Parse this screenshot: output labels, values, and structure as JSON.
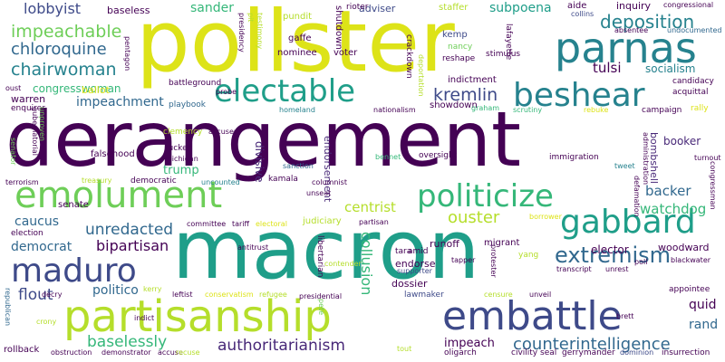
{
  "palette": {
    "purple": "#440154",
    "indigo": "#482878",
    "blue": "#3e4a89",
    "steel": "#31688e",
    "teal": "#26828e",
    "green": "#1f9e89",
    "sea": "#35b779",
    "lime": "#6ece58",
    "yellowgreen": "#b5de2b",
    "yellow": "#dde318"
  },
  "words": [
    {
      "text": "derangement",
      "color": "#440154"
    },
    {
      "text": "pollster",
      "color": "#dde318"
    },
    {
      "text": "macron",
      "color": "#1f9e89"
    },
    {
      "text": "partisanship",
      "color": "#b5de2b"
    },
    {
      "text": "embattle",
      "color": "#3e4a89"
    },
    {
      "text": "emolument",
      "color": "#6ece58"
    },
    {
      "text": "parnas",
      "color": "#26828e"
    },
    {
      "text": "electable",
      "color": "#1f9e89"
    },
    {
      "text": "politicize",
      "color": "#35b779"
    },
    {
      "text": "beshear",
      "color": "#26828e"
    },
    {
      "text": "gabbard",
      "color": "#1f9e89"
    },
    {
      "text": "maduro",
      "color": "#3e4a89"
    },
    {
      "text": "extremism",
      "color": "#31688e"
    },
    {
      "text": "deposition",
      "color": "#26828e"
    },
    {
      "text": "counterintelligence",
      "color": "#31688e"
    },
    {
      "text": "authoritarianism",
      "color": "#482878"
    },
    {
      "text": "impeachable",
      "color": "#6ece58"
    },
    {
      "text": "chloroquine",
      "color": "#31688e"
    },
    {
      "text": "chairwoman",
      "color": "#26828e"
    },
    {
      "text": "kremlin",
      "color": "#3e4a89"
    },
    {
      "text": "unredacted",
      "color": "#31688e"
    },
    {
      "text": "bipartisan",
      "color": "#440154"
    },
    {
      "text": "baselessly",
      "color": "#35b779"
    },
    {
      "text": "ouster",
      "color": "#b5de2b"
    },
    {
      "text": "watchdog",
      "color": "#35b779"
    },
    {
      "text": "backer",
      "color": "#31688e"
    },
    {
      "text": "centrist",
      "color": "#b5de2b"
    },
    {
      "text": "impeachment",
      "color": "#31688e"
    },
    {
      "text": "politico",
      "color": "#31688e"
    },
    {
      "text": "lobbyist",
      "color": "#3e4a89"
    },
    {
      "text": "sander",
      "color": "#35b779"
    },
    {
      "text": "subpoena",
      "color": "#1f9e89"
    },
    {
      "text": "tulsi",
      "color": "#440154"
    },
    {
      "text": "caucus",
      "color": "#31688e"
    },
    {
      "text": "democrat",
      "color": "#31688e"
    },
    {
      "text": "flout",
      "color": "#3e4a89"
    },
    {
      "text": "collusion",
      "color": "#35b779"
    },
    {
      "text": "trump",
      "color": "#35b779"
    },
    {
      "text": "impeach",
      "color": "#440154"
    },
    {
      "text": "congresswoman",
      "color": "#35b779"
    },
    {
      "text": "socialism",
      "color": "#26828e"
    },
    {
      "text": "runoff",
      "color": "#440154"
    },
    {
      "text": "woodward",
      "color": "#440154"
    },
    {
      "text": "elector",
      "color": "#440154"
    },
    {
      "text": "quid",
      "color": "#440154"
    },
    {
      "text": "rand",
      "color": "#31688e"
    },
    {
      "text": "booker",
      "color": "#482878"
    },
    {
      "text": "bombshell",
      "color": "#482878"
    },
    {
      "text": "divisive",
      "color": "#482878"
    },
    {
      "text": "endorsement",
      "color": "#482878"
    },
    {
      "text": "dossier",
      "color": "#440154"
    },
    {
      "text": "endorse",
      "color": "#440154"
    },
    {
      "text": "senate",
      "color": "#440154"
    },
    {
      "text": "gaffe",
      "color": "#440154"
    },
    {
      "text": "voter",
      "color": "#440154"
    },
    {
      "text": "nominee",
      "color": "#440154"
    },
    {
      "text": "pundit",
      "color": "#b5de2b"
    },
    {
      "text": "baseless",
      "color": "#440154"
    },
    {
      "text": "adviser",
      "color": "#3e4a89"
    },
    {
      "text": "staffer",
      "color": "#b5de2b"
    },
    {
      "text": "aide",
      "color": "#440154"
    },
    {
      "text": "inquiry",
      "color": "#440154"
    },
    {
      "text": "congressional",
      "color": "#440154"
    },
    {
      "text": "collins",
      "color": "#3e4a89"
    },
    {
      "text": "kemp",
      "color": "#3e4a89"
    },
    {
      "text": "nancy",
      "color": "#6ece58"
    },
    {
      "text": "reshape",
      "color": "#440154"
    },
    {
      "text": "stimulus",
      "color": "#440154"
    },
    {
      "text": "indictment",
      "color": "#440154"
    },
    {
      "text": "showdown",
      "color": "#440154"
    },
    {
      "text": "graham",
      "color": "#35b779"
    },
    {
      "text": "scrutiny",
      "color": "#35b779"
    },
    {
      "text": "rebuke",
      "color": "#dde318"
    },
    {
      "text": "campaign",
      "color": "#440154"
    },
    {
      "text": "rally",
      "color": "#dde318"
    },
    {
      "text": "acquittal",
      "color": "#440154"
    },
    {
      "text": "candidacy",
      "color": "#440154"
    },
    {
      "text": "turnout",
      "color": "#440154"
    },
    {
      "text": "tweet",
      "color": "#26828e"
    },
    {
      "text": "immigration",
      "color": "#440154"
    },
    {
      "text": "oversight",
      "color": "#440154"
    },
    {
      "text": "bennet",
      "color": "#35b779"
    },
    {
      "text": "nationalism",
      "color": "#440154"
    },
    {
      "text": "homeland",
      "color": "#26828e"
    },
    {
      "text": "sanction",
      "color": "#31688e"
    },
    {
      "text": "battleground",
      "color": "#440154"
    },
    {
      "text": "probe",
      "color": "#440154"
    },
    {
      "text": "playbook",
      "color": "#31688e"
    },
    {
      "text": "clemency",
      "color": "#b5de2b"
    },
    {
      "text": "accuser",
      "color": "#440154"
    },
    {
      "text": "tucker",
      "color": "#440154"
    },
    {
      "text": "michigan",
      "color": "#440154"
    },
    {
      "text": "falsehood",
      "color": "#440154"
    },
    {
      "text": "treasury",
      "color": "#b5de2b"
    },
    {
      "text": "democratic",
      "color": "#440154"
    },
    {
      "text": "kamala",
      "color": "#440154"
    },
    {
      "text": "uncounted",
      "color": "#26828e"
    },
    {
      "text": "columnist",
      "color": "#440154"
    },
    {
      "text": "unseat",
      "color": "#440154"
    },
    {
      "text": "judiciary",
      "color": "#b5de2b"
    },
    {
      "text": "partisan",
      "color": "#440154"
    },
    {
      "text": "migrant",
      "color": "#440154"
    },
    {
      "text": "committee",
      "color": "#440154"
    },
    {
      "text": "tariff",
      "color": "#440154"
    },
    {
      "text": "electoral",
      "color": "#dde318"
    },
    {
      "text": "election",
      "color": "#440154"
    },
    {
      "text": "terrorism",
      "color": "#440154"
    },
    {
      "text": "tara",
      "color": "#440154"
    },
    {
      "text": "amid",
      "color": "#440154"
    },
    {
      "text": "yang",
      "color": "#b5de2b"
    },
    {
      "text": "poll",
      "color": "#440154"
    },
    {
      "text": "blackwater",
      "color": "#440154"
    },
    {
      "text": "transcript",
      "color": "#440154"
    },
    {
      "text": "unrest",
      "color": "#440154"
    },
    {
      "text": "supporter",
      "color": "#3e4a89"
    },
    {
      "text": "tapper",
      "color": "#440154"
    },
    {
      "text": "contender",
      "color": "#b5de2b"
    },
    {
      "text": "antitrust",
      "color": "#440154"
    },
    {
      "text": "leftist",
      "color": "#440154"
    },
    {
      "text": "conservatism",
      "color": "#dde318"
    },
    {
      "text": "refugee",
      "color": "#b5de2b"
    },
    {
      "text": "presidential",
      "color": "#440154"
    },
    {
      "text": "lawmaker",
      "color": "#3e4a89"
    },
    {
      "text": "censure",
      "color": "#b5de2b"
    },
    {
      "text": "unveil",
      "color": "#440154"
    },
    {
      "text": "appointee",
      "color": "#440154"
    },
    {
      "text": "decry",
      "color": "#440154"
    },
    {
      "text": "kerry",
      "color": "#b5de2b"
    },
    {
      "text": "crony",
      "color": "#b5de2b"
    },
    {
      "text": "indict",
      "color": "#440154"
    },
    {
      "text": "republican",
      "color": "#31688e"
    },
    {
      "text": "rollback",
      "color": "#440154"
    },
    {
      "text": "obstruction",
      "color": "#440154"
    },
    {
      "text": "demonstrator",
      "color": "#440154"
    },
    {
      "text": "accuse",
      "color": "#440154"
    },
    {
      "text": "oligarch",
      "color": "#440154"
    },
    {
      "text": "civility",
      "color": "#440154"
    },
    {
      "text": "seal",
      "color": "#440154"
    },
    {
      "text": "gerrymander",
      "color": "#440154"
    },
    {
      "text": "dominion",
      "color": "#3e4a89"
    },
    {
      "text": "insurrection",
      "color": "#440154"
    },
    {
      "text": "tout",
      "color": "#b5de2b"
    },
    {
      "text": "brett",
      "color": "#440154"
    },
    {
      "text": "borrower",
      "color": "#dde318"
    },
    {
      "text": "defamation",
      "color": "#440154"
    },
    {
      "text": "administration",
      "color": "#440154"
    },
    {
      "text": "congressman",
      "color": "#440154"
    },
    {
      "text": "libertarian",
      "color": "#440154"
    },
    {
      "text": "protester",
      "color": "#440154"
    },
    {
      "text": "pete",
      "color": "#6ece58"
    },
    {
      "text": "ballot",
      "color": "#dde318"
    },
    {
      "text": "warren",
      "color": "#440154"
    },
    {
      "text": "enquirer",
      "color": "#440154"
    },
    {
      "text": "oust",
      "color": "#440154"
    },
    {
      "text": "senator",
      "color": "#6ece58"
    },
    {
      "text": "gubernatorial",
      "color": "#440154"
    },
    {
      "text": "unproven",
      "color": "#6ece58"
    },
    {
      "text": "pentagon",
      "color": "#440154"
    },
    {
      "text": "presidency",
      "color": "#440154"
    },
    {
      "text": "pit",
      "color": "#b5de2b"
    },
    {
      "text": "testimony",
      "color": "#b5de2b"
    },
    {
      "text": "shutdown",
      "color": "#440154"
    },
    {
      "text": "rioter",
      "color": "#440154"
    },
    {
      "text": "crackdown",
      "color": "#440154"
    },
    {
      "text": "deportation",
      "color": "#b5de2b"
    },
    {
      "text": "lafayette",
      "color": "#440154"
    },
    {
      "text": "absentee",
      "color": "#440154"
    },
    {
      "text": "undocumented",
      "color": "#31688e"
    },
    {
      "text": "recuse",
      "color": "#b5de2b"
    }
  ]
}
